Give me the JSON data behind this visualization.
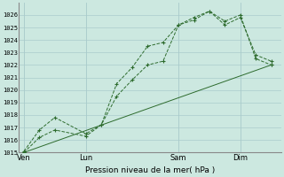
{
  "xlabel": "Pression niveau de la mer( hPa )",
  "ylim": [
    1015,
    1027
  ],
  "background_color": "#cce8e0",
  "grid_color": "#aacccc",
  "line_color": "#2d6b2d",
  "xtick_labels": [
    "Ven",
    "Lun",
    "Sam",
    "Dim"
  ],
  "xtick_positions": [
    0,
    24,
    60,
    84
  ],
  "vline_positions": [
    0,
    24,
    60,
    84
  ],
  "xlim": [
    -2,
    100
  ],
  "line1_x": [
    0,
    6,
    12,
    24,
    30,
    36,
    42,
    48,
    54,
    60,
    66,
    72,
    78,
    84,
    90,
    96
  ],
  "line1_y": [
    1015.0,
    1016.2,
    1016.8,
    1016.3,
    1017.2,
    1019.5,
    1020.8,
    1022.0,
    1022.3,
    1025.2,
    1025.6,
    1026.3,
    1025.5,
    1026.0,
    1022.5,
    1022.0
  ],
  "line2_x": [
    0,
    6,
    12,
    24,
    30,
    36,
    42,
    48,
    54,
    60,
    66,
    72,
    78,
    84,
    90,
    96
  ],
  "line2_y": [
    1015.1,
    1016.8,
    1017.8,
    1016.5,
    1017.2,
    1020.5,
    1021.8,
    1023.5,
    1023.8,
    1025.2,
    1025.8,
    1026.3,
    1025.2,
    1025.8,
    1022.8,
    1022.3
  ],
  "line3_x": [
    0,
    96
  ],
  "line3_y": [
    1015.0,
    1022.0
  ],
  "ytick_start": 1015,
  "ytick_end": 1026
}
